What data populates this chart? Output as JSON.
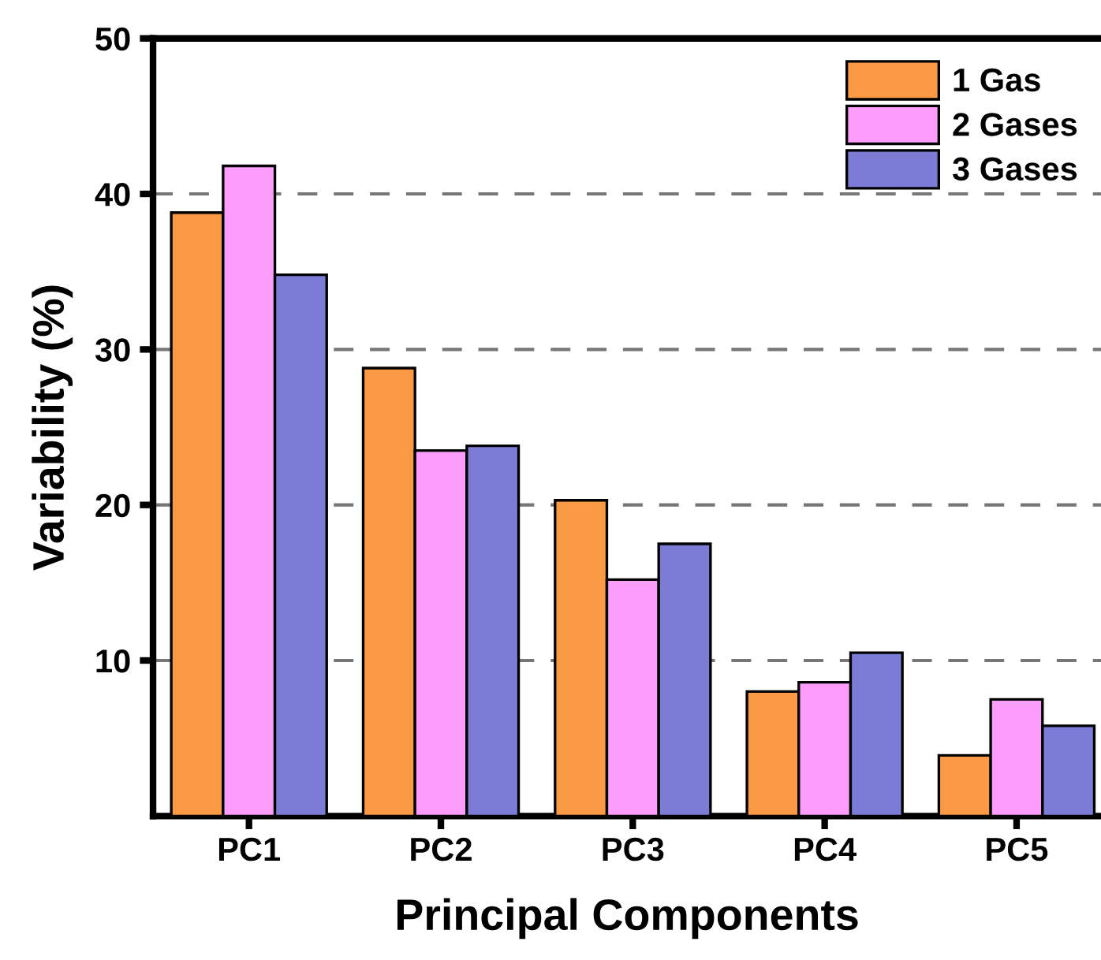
{
  "chart_data": {
    "type": "bar",
    "xlabel": "Principal Components",
    "ylabel": "Variability (%)",
    "categories": [
      "PC1",
      "PC2",
      "PC3",
      "PC4",
      "PC5"
    ],
    "series": [
      {
        "name": "1 Gas",
        "color": "#fb9a45",
        "values": [
          38.8,
          28.8,
          20.3,
          8.0,
          3.9
        ]
      },
      {
        "name": "2 Gases",
        "color": "#fc9dfc",
        "values": [
          41.8,
          23.5,
          15.2,
          8.6,
          7.5
        ]
      },
      {
        "name": "3 Gases",
        "color": "#7c7cd6",
        "values": [
          34.8,
          23.8,
          17.5,
          10.5,
          5.8
        ]
      }
    ],
    "ylim": [
      0,
      50
    ],
    "yticks": [
      10,
      20,
      30,
      40,
      50
    ],
    "grid": "y",
    "legend": "top right"
  }
}
